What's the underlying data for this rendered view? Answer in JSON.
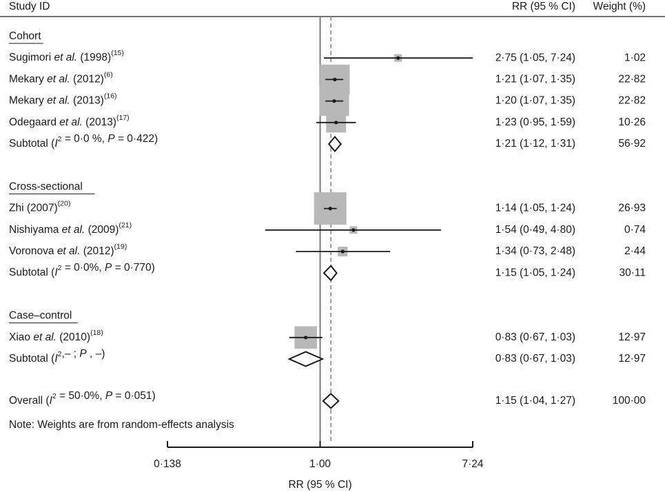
{
  "header": {
    "study": "Study ID",
    "rr": "RR (95 % CI)",
    "weight": "Weight (%)"
  },
  "note": "Note: Weights are from random-effects analysis",
  "chart_data": {
    "type": "forest",
    "xlabel": "RR (95 % CI)",
    "x_scale": "log",
    "x_ticks": [
      0.138,
      1.0,
      7.24
    ],
    "x_tick_labels": [
      "0·138",
      "1·00",
      "7·24"
    ],
    "null_line": 1.0,
    "overall_line": 1.15,
    "groups": [
      {
        "label": "Cohort",
        "studies": [
          {
            "name_parts": [
              [
                "Sugimori ",
                ""
              ],
              [
                "et al.",
                "i"
              ],
              [
                " (1998)",
                ""
              ]
            ],
            "ref": "(15)",
            "rr": 2.75,
            "lo": 1.05,
            "hi": 7.24,
            "rr_text": "2·75 (1·05, 7·24)",
            "weight": 1.02,
            "weight_text": "1·02"
          },
          {
            "name_parts": [
              [
                "Mekary ",
                ""
              ],
              [
                "et al.",
                "i"
              ],
              [
                " (2012)",
                ""
              ]
            ],
            "ref": "(6)",
            "rr": 1.21,
            "lo": 1.07,
            "hi": 1.35,
            "rr_text": "1·21 (1·07, 1·35)",
            "weight": 22.82,
            "weight_text": "22·82"
          },
          {
            "name_parts": [
              [
                "Mekary ",
                ""
              ],
              [
                "et al.",
                "i"
              ],
              [
                " (2013)",
                ""
              ]
            ],
            "ref": "(16)",
            "rr": 1.2,
            "lo": 1.07,
            "hi": 1.35,
            "rr_text": "1·20 (1·07, 1·35)",
            "weight": 22.82,
            "weight_text": "22·82"
          },
          {
            "name_parts": [
              [
                "Odegaard ",
                ""
              ],
              [
                "et al.",
                "i"
              ],
              [
                " (2013)",
                ""
              ]
            ],
            "ref": "(17)",
            "rr": 1.23,
            "lo": 0.95,
            "hi": 1.59,
            "rr_text": "1·23 (0·95, 1·59)",
            "weight": 10.26,
            "weight_text": "10·26"
          }
        ],
        "subtotal": {
          "name_parts": [
            [
              "Subtotal (",
              ""
            ],
            [
              "I",
              "i"
            ],
            [
              "2",
              "sup"
            ],
            [
              " = 0·0 %, ",
              ""
            ],
            [
              "P",
              "i"
            ],
            [
              " = 0·422)",
              ""
            ]
          ],
          "rr": 1.21,
          "lo": 1.12,
          "hi": 1.31,
          "rr_text": "1·21 (1·12, 1·31)",
          "weight_text": "56·92"
        }
      },
      {
        "label": "Cross-sectional",
        "studies": [
          {
            "name_parts": [
              [
                "Zhi (2007)",
                ""
              ]
            ],
            "ref": "(20)",
            "rr": 1.14,
            "lo": 1.05,
            "hi": 1.24,
            "rr_text": "1·14 (1·05, 1·24)",
            "weight": 26.93,
            "weight_text": "26·93"
          },
          {
            "name_parts": [
              [
                "Nishiyama ",
                ""
              ],
              [
                "et al.",
                "i"
              ],
              [
                " (2009)",
                ""
              ]
            ],
            "ref": "(21)",
            "rr": 1.54,
            "lo": 0.49,
            "hi": 4.8,
            "rr_text": "1·54 (0·49, 4·80)",
            "weight": 0.74,
            "weight_text": "0·74"
          },
          {
            "name_parts": [
              [
                "Voronova ",
                ""
              ],
              [
                "et al.",
                "i"
              ],
              [
                " (2012)",
                ""
              ]
            ],
            "ref": "(19)",
            "rr": 1.34,
            "lo": 0.73,
            "hi": 2.48,
            "rr_text": "1·34 (0·73, 2·48)",
            "weight": 2.44,
            "weight_text": "2·44"
          }
        ],
        "subtotal": {
          "name_parts": [
            [
              "Subtotal (",
              ""
            ],
            [
              "I",
              "i"
            ],
            [
              "2",
              "sup"
            ],
            [
              " = 0·0%, ",
              ""
            ],
            [
              "P",
              "i"
            ],
            [
              " = 0·770)",
              ""
            ]
          ],
          "rr": 1.15,
          "lo": 1.05,
          "hi": 1.24,
          "rr_text": "1·15 (1·05, 1·24)",
          "weight_text": "30·11"
        }
      },
      {
        "label": "Case–control",
        "studies": [
          {
            "name_parts": [
              [
                "Xiao ",
                ""
              ],
              [
                "et al.",
                "i"
              ],
              [
                " (2010)",
                ""
              ]
            ],
            "ref": "(18)",
            "rr": 0.83,
            "lo": 0.67,
            "hi": 1.03,
            "rr_text": "0·83 (0·67, 1·03)",
            "weight": 12.97,
            "weight_text": "12·97"
          }
        ],
        "subtotal": {
          "name_parts": [
            [
              "Subtotal (",
              ""
            ],
            [
              "I",
              "i"
            ],
            [
              "2",
              "sup"
            ],
            [
              ",– ; ",
              ""
            ],
            [
              "P",
              "i"
            ],
            [
              " , –)",
              ""
            ]
          ],
          "rr": 0.83,
          "lo": 0.67,
          "hi": 1.03,
          "rr_text": "0·83 (0·67, 1·03)",
          "weight_text": "12·97"
        }
      }
    ],
    "overall": {
      "name_parts": [
        [
          "Overall (",
          ""
        ],
        [
          "I",
          "i"
        ],
        [
          "2",
          "sup"
        ],
        [
          " = 50·0%, ",
          ""
        ],
        [
          "P",
          "i"
        ],
        [
          " = 0·051)",
          ""
        ]
      ],
      "rr": 1.15,
      "lo": 1.04,
      "hi": 1.27,
      "rr_text": "1·15 (1·04, 1·27)",
      "weight_text": "100·00"
    },
    "colors": {
      "box": "#b8b8b8",
      "line": "#1a1a1a",
      "null_line": "#7a7a7a",
      "ref_line": "#8a8a8a"
    }
  }
}
